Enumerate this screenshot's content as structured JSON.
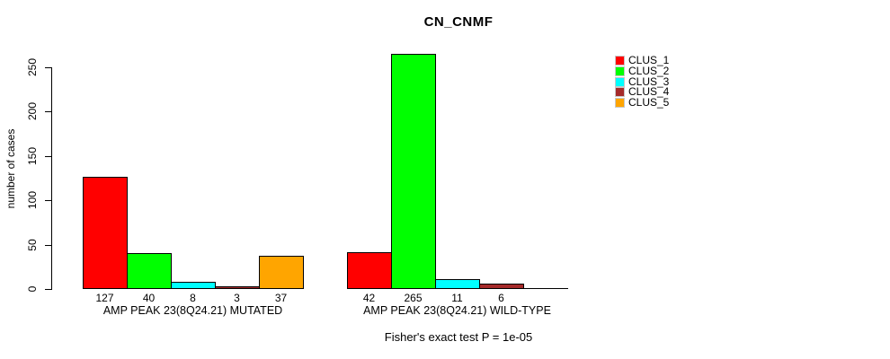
{
  "chart_data": {
    "type": "bar",
    "title": "CN_CNMF",
    "ylabel": "number of cases",
    "ylim": [
      0,
      250
    ],
    "yticks": [
      0,
      50,
      100,
      150,
      200,
      250
    ],
    "grid": false,
    "legend_position": "right-outside",
    "footnote": "Fisher's exact test P = 1e-05",
    "series_colors": [
      "#FF0000",
      "#00FF00",
      "#00FFFF",
      "#A52A2A",
      "#FFA500"
    ],
    "legend": [
      {
        "label": "CLUS_1",
        "color": "#FF0000"
      },
      {
        "label": "CLUS_2",
        "color": "#00FF00"
      },
      {
        "label": "CLUS_3",
        "color": "#00FFFF"
      },
      {
        "label": "CLUS_4",
        "color": "#A52A2A"
      },
      {
        "label": "CLUS_5",
        "color": "#FFA500"
      }
    ],
    "groups": [
      {
        "label": "AMP PEAK 23(8Q24.21) MUTATED",
        "values": [
          127,
          40,
          8,
          3,
          37
        ],
        "count_labels": [
          "127",
          "40",
          "8",
          "3",
          "37"
        ]
      },
      {
        "label": "AMP PEAK 23(8Q24.21) WILD-TYPE",
        "values": [
          42,
          265,
          11,
          6,
          0
        ],
        "count_labels": [
          "42",
          "265",
          "11",
          "6",
          ""
        ]
      }
    ]
  }
}
